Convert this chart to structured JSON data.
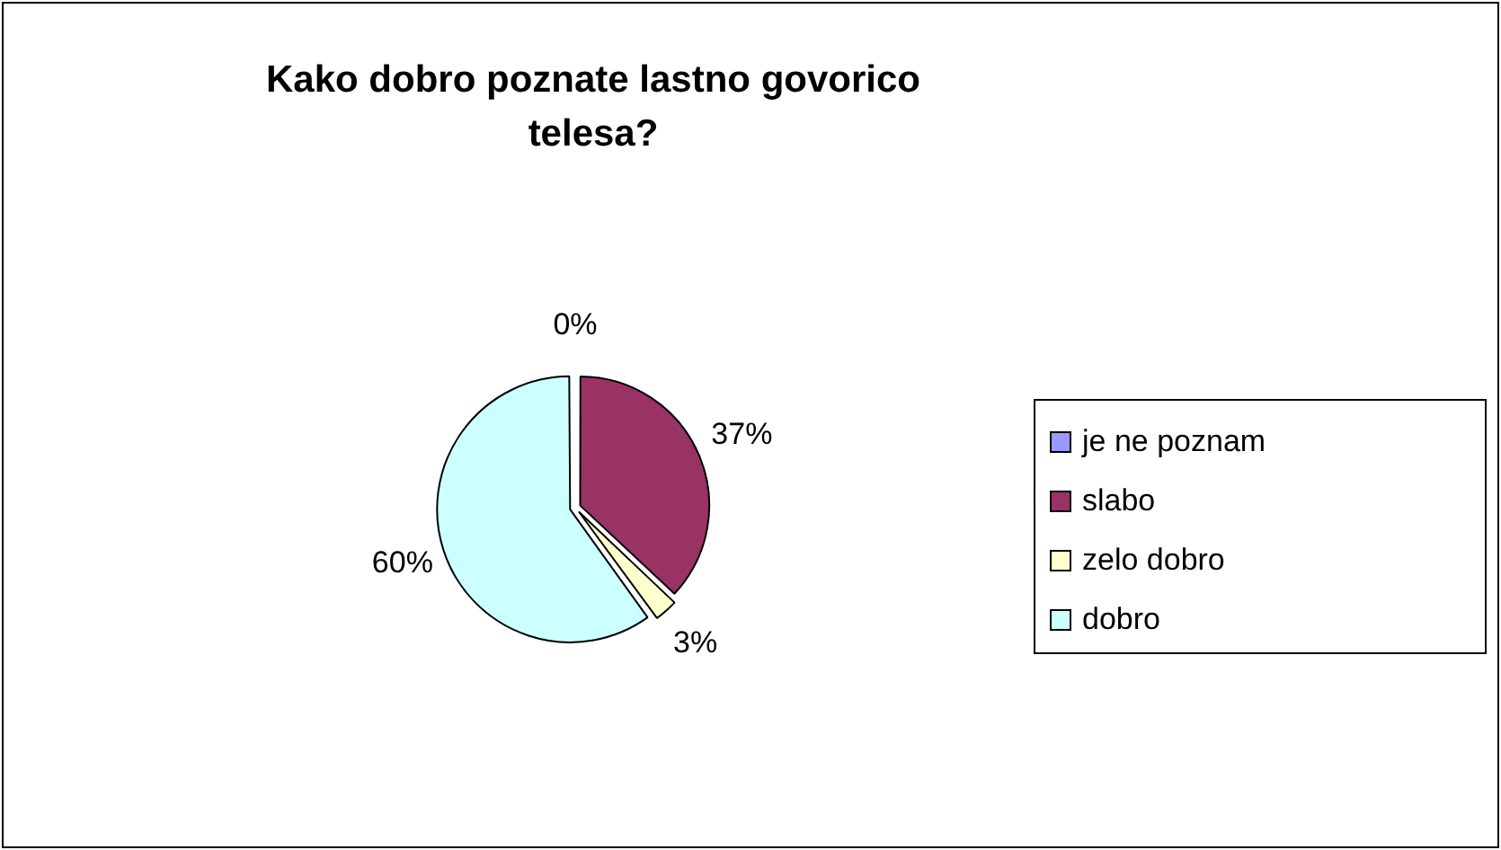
{
  "chart_data": {
    "type": "pie",
    "title": "Kako dobro poznate lastno govorico telesa?",
    "categories": [
      "je ne poznam",
      "slabo",
      "zelo dobro",
      "dobro"
    ],
    "values": [
      0,
      37,
      3,
      60
    ],
    "colors": [
      "#9999ff",
      "#993366",
      "#ffffcc",
      "#ccffff"
    ],
    "value_labels": [
      "0%",
      "37%",
      "3%",
      "60%"
    ],
    "legend": "right"
  }
}
